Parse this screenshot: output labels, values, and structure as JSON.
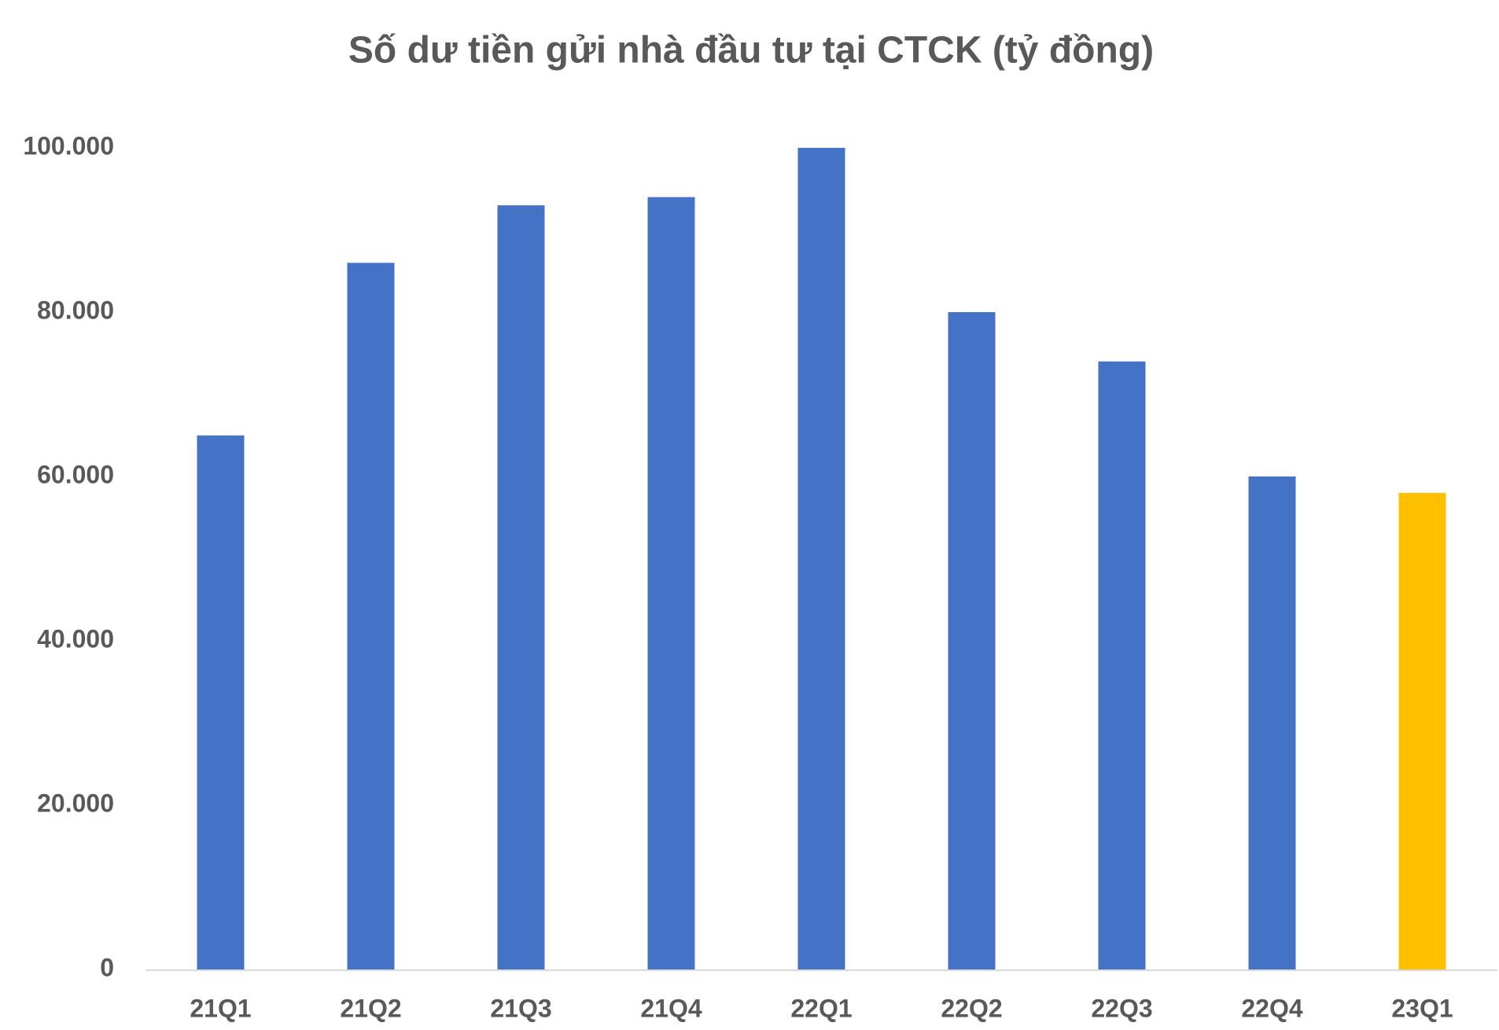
{
  "chart_data": {
    "type": "bar",
    "title": "Số dư tiền gửi nhà đầu tư tại CTCK (tỷ đồng)",
    "categories": [
      "21Q1",
      "21Q2",
      "21Q3",
      "21Q4",
      "22Q1",
      "22Q2",
      "22Q3",
      "22Q4",
      "23Q1"
    ],
    "values": [
      65000,
      86000,
      93000,
      94000,
      100000,
      80000,
      74000,
      60000,
      58000
    ],
    "colors": [
      "#4472c4",
      "#4472c4",
      "#4472c4",
      "#4472c4",
      "#4472c4",
      "#4472c4",
      "#4472c4",
      "#4472c4",
      "#ffc000"
    ],
    "ylim": [
      0,
      100000
    ],
    "yticks": [
      0,
      {
        "value": 20000,
        "label": "20.000"
      },
      {
        "value": 40000,
        "label": "40.000"
      },
      {
        "value": 60000,
        "label": "60.000"
      },
      {
        "value": 80000,
        "label": "80.000"
      },
      {
        "value": 100000,
        "label": "100.000"
      }
    ],
    "grid": false
  }
}
